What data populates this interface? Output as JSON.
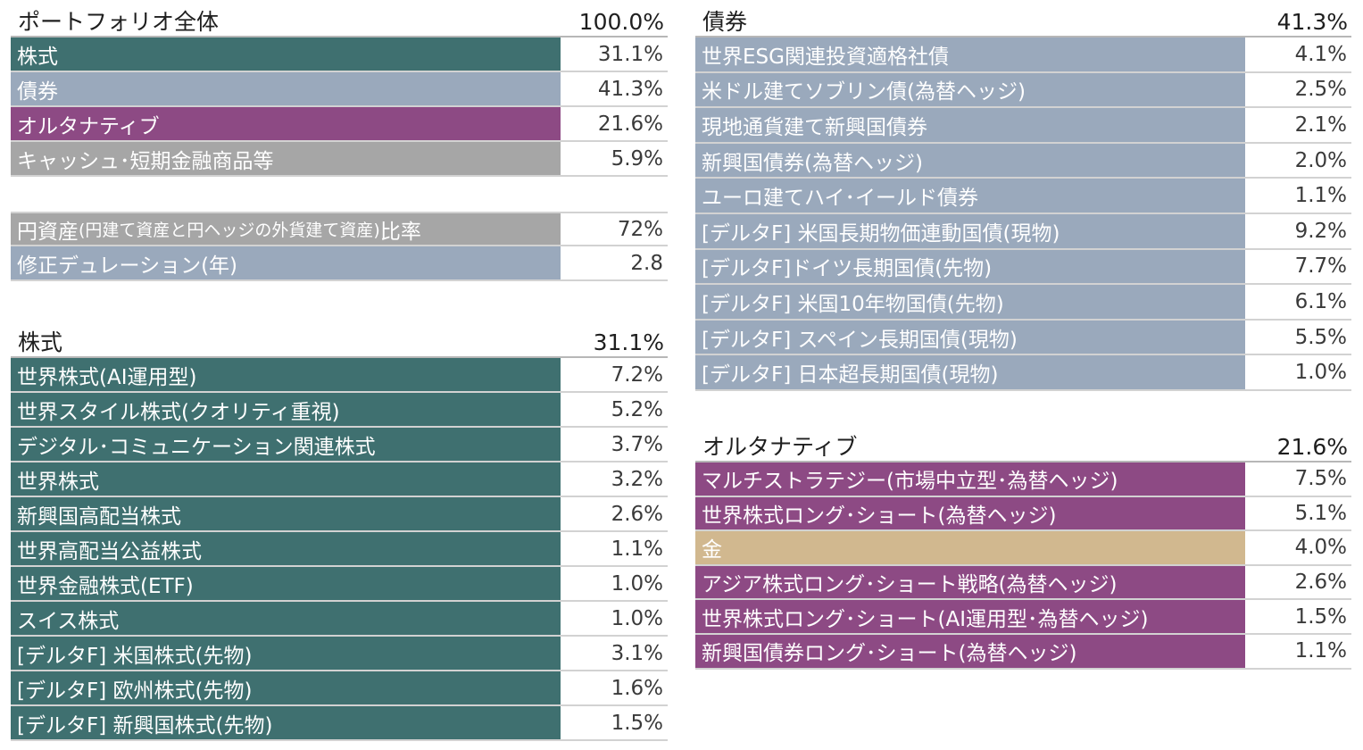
{
  "colors": {
    "equity": "#3f7070",
    "bond": "#9aa9bc",
    "alternative": "#8d4a84",
    "cash": "#a6a6a6",
    "gold": "#d1b88f"
  },
  "portfolio": {
    "title": "ポートフォリオ全体",
    "total": "100.0%",
    "rows": [
      {
        "label": "株式",
        "value": "31.1%",
        "color": "#3f7070"
      },
      {
        "label": "債券",
        "value": "41.3%",
        "color": "#9aa9bc"
      },
      {
        "label": "オルタナティブ",
        "value": "21.6%",
        "color": "#8d4a84"
      },
      {
        "label": "キャッシュ･短期金融商品等",
        "value": "5.9%",
        "color": "#a6a6a6"
      }
    ]
  },
  "metrics": {
    "yen_ratio": {
      "label_a": "円資産",
      "label_b": "(円建て資産と円ヘッジの外貨建て資産)",
      "label_c": "比率",
      "value": "72%",
      "color": "#a6a6a6"
    },
    "duration": {
      "label": "修正デュレーション(年)",
      "value": "2.8",
      "color": "#9aa9bc"
    }
  },
  "equity": {
    "title": "株式",
    "total": "31.1%",
    "rows": [
      {
        "label": "世界株式(AI運用型)",
        "value": "7.2%",
        "color": "#3f7070"
      },
      {
        "label": "世界スタイル株式(クオリティ重視)",
        "value": "5.2%",
        "color": "#3f7070"
      },
      {
        "label": "デジタル･コミュニケーション関連株式",
        "value": "3.7%",
        "color": "#3f7070"
      },
      {
        "label": "世界株式",
        "value": "3.2%",
        "color": "#3f7070"
      },
      {
        "label": "新興国高配当株式",
        "value": "2.6%",
        "color": "#3f7070"
      },
      {
        "label": "世界高配当公益株式",
        "value": "1.1%",
        "color": "#3f7070"
      },
      {
        "label": "世界金融株式(ETF)",
        "value": "1.0%",
        "color": "#3f7070"
      },
      {
        "label": "スイス株式",
        "value": "1.0%",
        "color": "#3f7070"
      },
      {
        "label": "[デルタF] 米国株式(先物)",
        "value": "3.1%",
        "color": "#3f7070"
      },
      {
        "label": "[デルタF] 欧州株式(先物)",
        "value": "1.6%",
        "color": "#3f7070"
      },
      {
        "label": "[デルタF] 新興国株式(先物)",
        "value": "1.5%",
        "color": "#3f7070"
      }
    ]
  },
  "bonds": {
    "title": "債券",
    "total": "41.3%",
    "rows": [
      {
        "label": "世界ESG関連投資適格社債",
        "value": "4.1%",
        "color": "#9aa9bc"
      },
      {
        "label": "米ドル建てソブリン債(為替ヘッジ)",
        "value": "2.5%",
        "color": "#9aa9bc"
      },
      {
        "label": "現地通貨建て新興国債券",
        "value": "2.1%",
        "color": "#9aa9bc"
      },
      {
        "label": "新興国債券(為替ヘッジ)",
        "value": "2.0%",
        "color": "#9aa9bc"
      },
      {
        "label": "ユーロ建てハイ･イールド債券",
        "value": "1.1%",
        "color": "#9aa9bc"
      },
      {
        "label": "[デルタF] 米国長期物価連動国債(現物)",
        "value": "9.2%",
        "color": "#9aa9bc"
      },
      {
        "label": "[デルタF]ドイツ長期国債(先物)",
        "value": "7.7%",
        "color": "#9aa9bc"
      },
      {
        "label": "[デルタF] 米国10年物国債(先物)",
        "value": "6.1%",
        "color": "#9aa9bc"
      },
      {
        "label": "[デルタF] スペイン長期国債(現物)",
        "value": "5.5%",
        "color": "#9aa9bc"
      },
      {
        "label": "[デルタF] 日本超長期国債(現物)",
        "value": "1.0%",
        "color": "#9aa9bc"
      }
    ]
  },
  "alternatives": {
    "title": "オルタナティブ",
    "total": "21.6%",
    "rows": [
      {
        "label": "マルチストラテジー(市場中立型･為替ヘッジ)",
        "value": "7.5%",
        "color": "#8d4a84"
      },
      {
        "label": "世界株式ロング･ショート(為替ヘッジ)",
        "value": "5.1%",
        "color": "#8d4a84"
      },
      {
        "label": "金",
        "value": "4.0%",
        "color": "#d1b88f"
      },
      {
        "label": "アジア株式ロング･ショート戦略(為替ヘッジ)",
        "value": "2.6%",
        "color": "#8d4a84"
      },
      {
        "label": "世界株式ロング･ショート(AI運用型･為替ヘッジ)",
        "value": "1.5%",
        "color": "#8d4a84"
      },
      {
        "label": "新興国債券ロング･ショート(為替ヘッジ)",
        "value": "1.1%",
        "color": "#8d4a84"
      }
    ]
  }
}
